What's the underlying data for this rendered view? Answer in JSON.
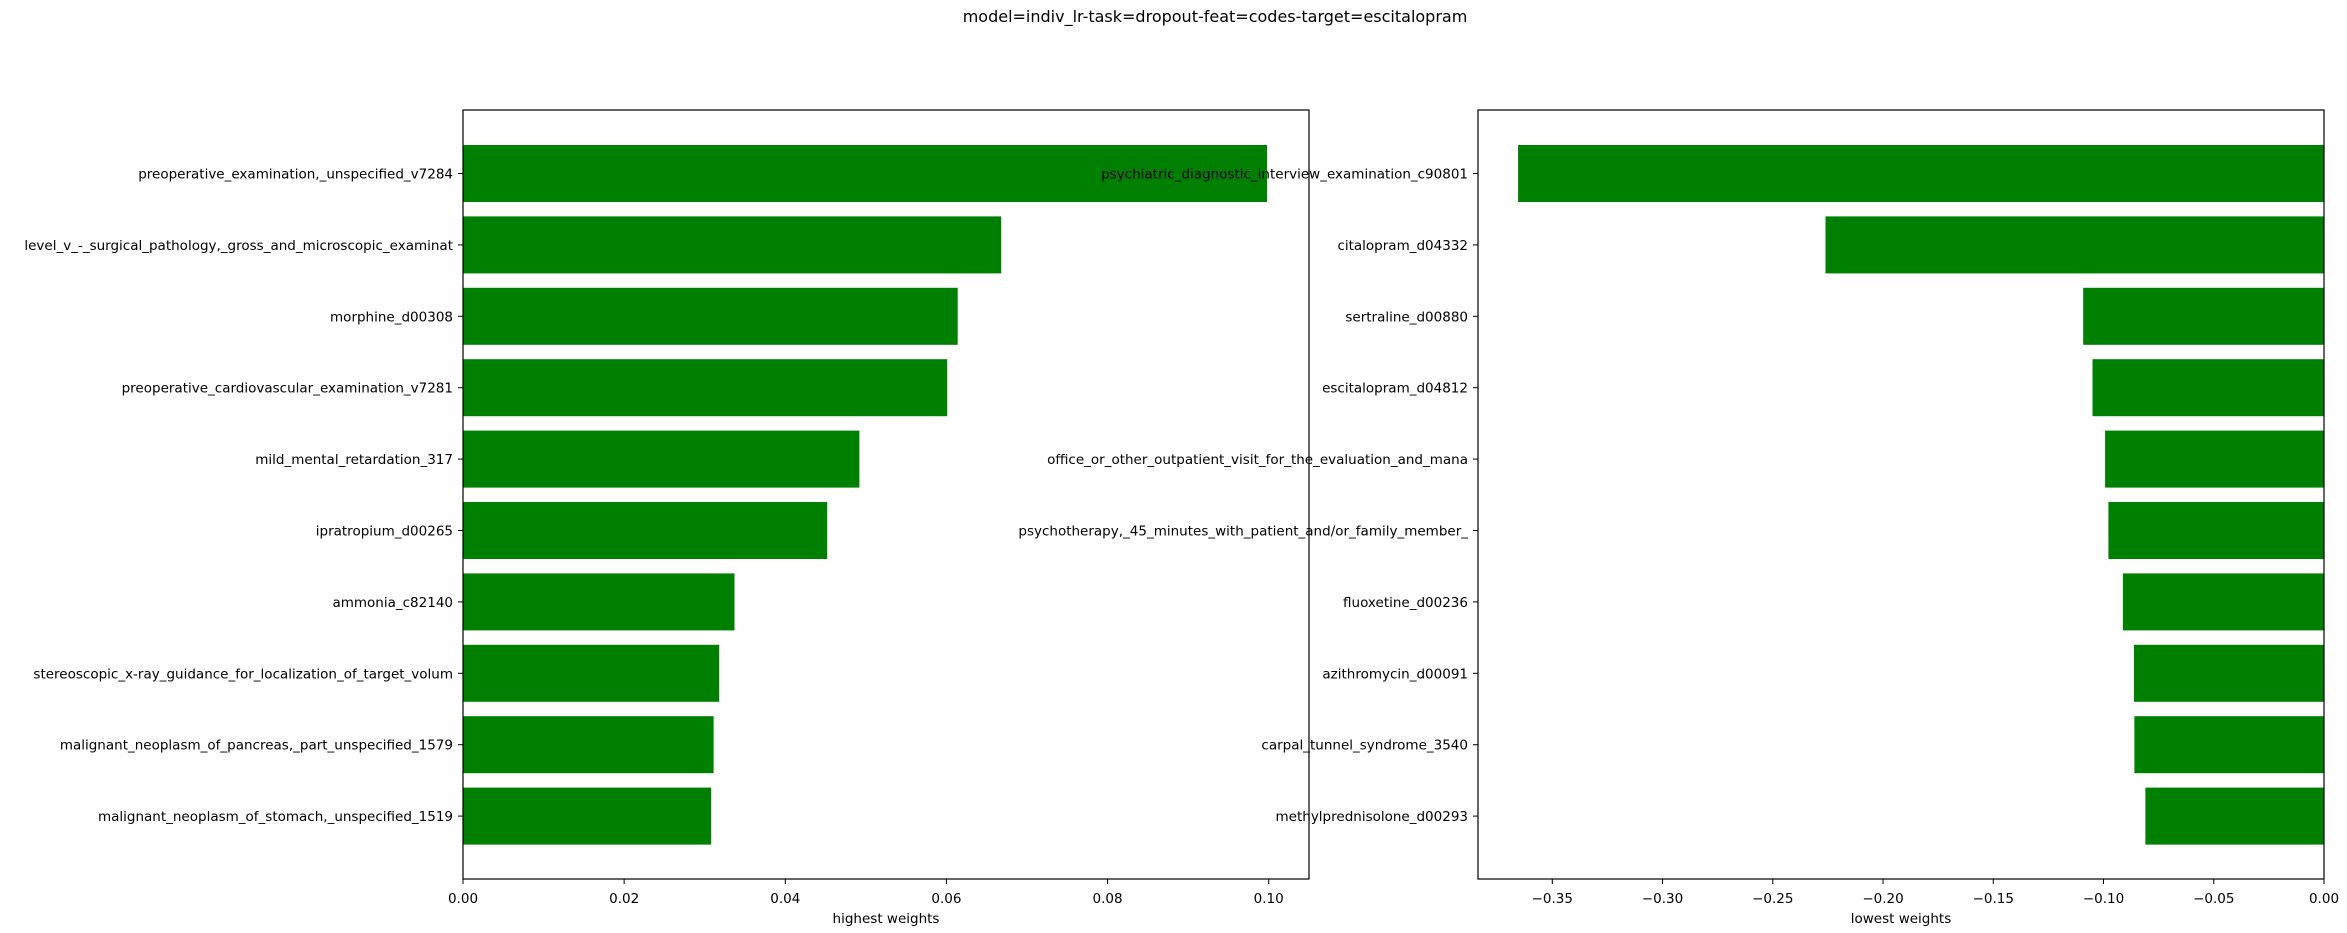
{
  "figure": {
    "suptitle": "model=indiv_lr-task=dropout-feat=codes-target=escitalopram"
  },
  "colors": {
    "bar": "#008000",
    "axes": "#000000",
    "background": "#ffffff"
  },
  "chart_data": [
    {
      "type": "bar",
      "orientation": "horizontal",
      "xlabel": "highest weights",
      "ylabel": "",
      "xlim": [
        0,
        0.105
      ],
      "xticks": [
        0.0,
        0.02,
        0.04,
        0.06,
        0.08,
        0.1
      ],
      "xtick_labels": [
        "0.00",
        "0.02",
        "0.04",
        "0.06",
        "0.08",
        "0.10"
      ],
      "grid": false,
      "categories": [
        "preoperative_examination,_unspecified_v7284",
        "level_v_-_surgical_pathology,_gross_and_microscopic_examinat",
        "morphine_d00308",
        "preoperative_cardiovascular_examination_v7281",
        "mild_mental_retardation_317",
        "ipratropium_d00265",
        "ammonia_c82140",
        "stereoscopic_x-ray_guidance_for_localization_of_target_volum",
        "malignant_neoplasm_of_pancreas,_part_unspecified_1579",
        "malignant_neoplasm_of_stomach,_unspecified_1519"
      ],
      "values": [
        0.0998,
        0.0668,
        0.0614,
        0.0601,
        0.0492,
        0.0452,
        0.0337,
        0.0318,
        0.0311,
        0.0308
      ]
    },
    {
      "type": "bar",
      "orientation": "horizontal",
      "xlabel": "lowest weights",
      "ylabel": "",
      "xlim": [
        -0.3837,
        0
      ],
      "xticks": [
        -0.35,
        -0.3,
        -0.25,
        -0.2,
        -0.15,
        -0.1,
        -0.05,
        0.0
      ],
      "xtick_labels": [
        "−0.35",
        "−0.30",
        "−0.25",
        "−0.20",
        "−0.15",
        "−0.10",
        "−0.05",
        "0.00"
      ],
      "grid": false,
      "categories": [
        "psychiatric_diagnostic_interview_examination_c90801",
        "citalopram_d04332",
        "sertraline_d00880",
        "escitalopram_d04812",
        "office_or_other_outpatient_visit_for_the_evaluation_and_mana",
        "psychotherapy,_45_minutes_with_patient_and/or_family_member_",
        "fluoxetine_d00236",
        "azithromycin_d00091",
        "carpal_tunnel_syndrome_3540",
        "methylprednisolone_d00293"
      ],
      "values": [
        -0.3655,
        -0.2261,
        -0.1092,
        -0.105,
        -0.0993,
        -0.0978,
        -0.0912,
        -0.0862,
        -0.086,
        -0.081
      ]
    }
  ]
}
